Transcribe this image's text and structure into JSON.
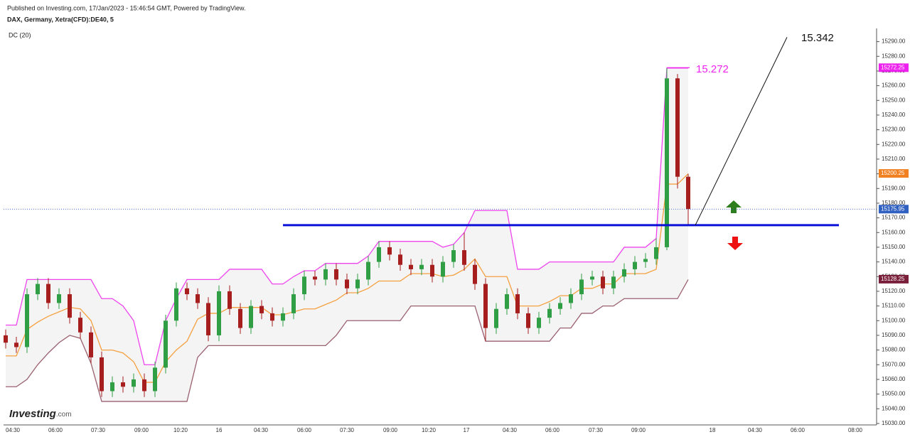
{
  "header": {
    "published": "Published on Investing.com, 17/Jan/2023 - 15:46:54 GMT, Powered by TradingView.",
    "instrument": "DAX, Germany, Xetra(CFD):DE40, 5",
    "indicator": "DC (20)",
    "logo": "Investing",
    "logo_suffix": ".com"
  },
  "chart_data": {
    "type": "candlestick",
    "x_labels": [
      "04:30",
      "06:00",
      "07:30",
      "09:00",
      "10:20",
      "16",
      "04:30",
      "06:00",
      "07:30",
      "09:00",
      "10:20",
      "17",
      "04:30",
      "06:00",
      "07:30",
      "09:00",
      "18",
      "04:30",
      "06:00",
      "08:00"
    ],
    "open": [
      15090,
      15085,
      15082,
      15118,
      15125,
      15112,
      15118,
      15102,
      15092,
      15075,
      15052,
      15058,
      15055,
      15060,
      15052,
      15068,
      15100,
      15122,
      15118,
      15112,
      15090,
      15120,
      15108,
      15095,
      15110,
      15105,
      15100,
      15105,
      15118,
      15130,
      15128,
      15135,
      15128,
      15122,
      15128,
      15140,
      15150,
      15145,
      15138,
      15135,
      15138,
      15130,
      15140,
      15148,
      15138,
      15125,
      15095,
      15108,
      15118,
      15105,
      15095,
      15102,
      15108,
      15112,
      15118,
      15128,
      15130,
      15122,
      15130,
      15135,
      15140,
      15142,
      15150,
      15265,
      15198
    ],
    "high": [
      15094,
      15089,
      15122,
      15129,
      15129,
      15122,
      15122,
      15106,
      15096,
      15079,
      15062,
      15062,
      15064,
      15064,
      15072,
      15104,
      15126,
      15126,
      15122,
      15116,
      15124,
      15124,
      15112,
      15114,
      15114,
      15109,
      15109,
      15122,
      15134,
      15134,
      15139,
      15139,
      15132,
      15132,
      15144,
      15154,
      15154,
      15149,
      15142,
      15142,
      15142,
      15144,
      15152,
      15160,
      15142,
      15129,
      15112,
      15122,
      15122,
      15109,
      15106,
      15112,
      15116,
      15122,
      15132,
      15134,
      15134,
      15134,
      15139,
      15144,
      15146,
      15156,
      15272,
      15268,
      15200
    ],
    "low": [
      15081,
      15078,
      15078,
      15114,
      15108,
      15108,
      15098,
      15088,
      15071,
      15048,
      15048,
      15051,
      15051,
      15048,
      15048,
      15064,
      15096,
      15114,
      15108,
      15086,
      15086,
      15104,
      15091,
      15091,
      15101,
      15096,
      15096,
      15101,
      15114,
      15124,
      15124,
      15124,
      15118,
      15118,
      15124,
      15136,
      15141,
      15134,
      15131,
      15131,
      15126,
      15126,
      15136,
      15134,
      15121,
      15086,
      15091,
      15104,
      15101,
      15091,
      15091,
      15098,
      15104,
      15108,
      15114,
      15124,
      15118,
      15118,
      15126,
      15131,
      15136,
      15138,
      15148,
      15190,
      15165
    ],
    "close": [
      15085,
      15082,
      15118,
      15125,
      15112,
      15118,
      15102,
      15092,
      15075,
      15052,
      15058,
      15055,
      15060,
      15052,
      15068,
      15100,
      15122,
      15118,
      15112,
      15090,
      15120,
      15108,
      15095,
      15110,
      15105,
      15100,
      15105,
      15118,
      15130,
      15128,
      15135,
      15128,
      15122,
      15128,
      15140,
      15150,
      15145,
      15138,
      15135,
      15138,
      15130,
      15140,
      15148,
      15138,
      15125,
      15095,
      15108,
      15118,
      15105,
      15095,
      15102,
      15108,
      15112,
      15118,
      15128,
      15130,
      15122,
      15130,
      15135,
      15140,
      15142,
      15150,
      15265,
      15198,
      15176
    ],
    "up_color": "#2f9e44",
    "down_color": "#a61e1e",
    "series": [
      {
        "name": "DC upper",
        "color": "#ee44ee",
        "values": [
          15097,
          15097,
          15128,
          15128,
          15128,
          15128,
          15128,
          15128,
          15128,
          15115,
          15115,
          15110,
          15100,
          15070,
          15070,
          15100,
          15115,
          15128,
          15128,
          15128,
          15128,
          15135,
          15135,
          15135,
          15135,
          15125,
          15125,
          15130,
          15134,
          15134,
          15139,
          15139,
          15139,
          15139,
          15144,
          15154,
          15154,
          15154,
          15154,
          15154,
          15154,
          15150,
          15152,
          15160,
          15175,
          15175,
          15175,
          15175,
          15135,
          15135,
          15135,
          15140,
          15140,
          15140,
          15140,
          15140,
          15140,
          15140,
          15150,
          15150,
          15150,
          15156,
          15272,
          15272,
          15272
        ]
      },
      {
        "name": "DC basis",
        "color": "#f5a040",
        "values": [
          15076,
          15076,
          15094,
          15099,
          15103,
          15106,
          15109,
          15108,
          15100,
          15080,
          15080,
          15078,
          15072,
          15058,
          15058,
          15072,
          15080,
          15086,
          15101,
          15105,
          15105,
          15109,
          15109,
          15109,
          15109,
          15104,
          15104,
          15106,
          15108,
          15108,
          15111,
          15114,
          15119,
          15119,
          15122,
          15127,
          15127,
          15127,
          15132,
          15132,
          15132,
          15130,
          15131,
          15135,
          15142,
          15130,
          15130,
          15130,
          15110,
          15110,
          15110,
          15113,
          15117,
          15117,
          15122,
          15122,
          15125,
          15125,
          15132,
          15132,
          15132,
          15135,
          15193,
          15193,
          15200
        ]
      },
      {
        "name": "DC lower",
        "color": "#9a6070",
        "values": [
          15055,
          15055,
          15060,
          15070,
          15078,
          15085,
          15090,
          15088,
          15071,
          15045,
          15045,
          15045,
          15045,
          15045,
          15045,
          15045,
          15045,
          15045,
          15075,
          15083,
          15083,
          15083,
          15083,
          15083,
          15083,
          15083,
          15083,
          15083,
          15083,
          15083,
          15083,
          15090,
          15100,
          15100,
          15100,
          15100,
          15100,
          15100,
          15110,
          15110,
          15110,
          15110,
          15110,
          15110,
          15110,
          15086,
          15086,
          15086,
          15086,
          15086,
          15086,
          15086,
          15095,
          15095,
          15105,
          15105,
          15110,
          15110,
          15115,
          15115,
          15115,
          15115,
          15115,
          15115,
          15128
        ]
      }
    ],
    "price_labels": [
      {
        "value": 15272.25,
        "color": "#ee22ee"
      },
      {
        "value": 15200.25,
        "color": "#f08020"
      },
      {
        "value": 15175.95,
        "color": "#3060c0"
      },
      {
        "value": 15128.25,
        "color": "#7a1f3a"
      }
    ],
    "last_price": 15175.95,
    "support_level": 15165,
    "support_color": "#0a10d8",
    "trend_line": [
      15165,
      15293
    ],
    "annotations": [
      {
        "text": "15.342",
        "color": "#111111"
      },
      {
        "text": "15.272",
        "color": "#ee22ee"
      }
    ],
    "ylim": [
      15029,
      15299
    ],
    "yticks": [
      {
        "value": 15030,
        "label": "15030.00"
      },
      {
        "value": 15040,
        "label": "15040.00"
      },
      {
        "value": 15050,
        "label": "15050.00"
      },
      {
        "value": 15060,
        "label": "15060.00"
      },
      {
        "value": 15070,
        "label": "15070.00"
      },
      {
        "value": 15080,
        "label": "15080.00"
      },
      {
        "value": 15090,
        "label": "15090.00"
      },
      {
        "value": 15100,
        "label": "15100.00"
      },
      {
        "value": 15110,
        "label": "15110.00"
      },
      {
        "value": 15120,
        "label": "15120.00"
      },
      {
        "value": 15130,
        "label": "15130.00"
      },
      {
        "value": 15140,
        "label": "15140.00"
      },
      {
        "value": 15150,
        "label": "15150.00"
      },
      {
        "value": 15160,
        "label": "15160.00"
      },
      {
        "value": 15170,
        "label": "15170.00"
      },
      {
        "value": 15180,
        "label": "15180.00"
      },
      {
        "value": 15190,
        "label": "15190.00"
      },
      {
        "value": 15200,
        "label": "15200.00"
      },
      {
        "value": 15210,
        "label": "15210.00"
      },
      {
        "value": 15220,
        "label": "15220.00"
      },
      {
        "value": 15230,
        "label": "15230.00"
      },
      {
        "value": 15240,
        "label": "15240.00"
      },
      {
        "value": 15250,
        "label": "15250.00"
      },
      {
        "value": 15260,
        "label": "15260.00"
      },
      {
        "value": 15270,
        "label": "15270.00"
      },
      {
        "value": 15280,
        "label": "15280.00"
      },
      {
        "value": 15290,
        "label": "15290.00"
      }
    ]
  }
}
